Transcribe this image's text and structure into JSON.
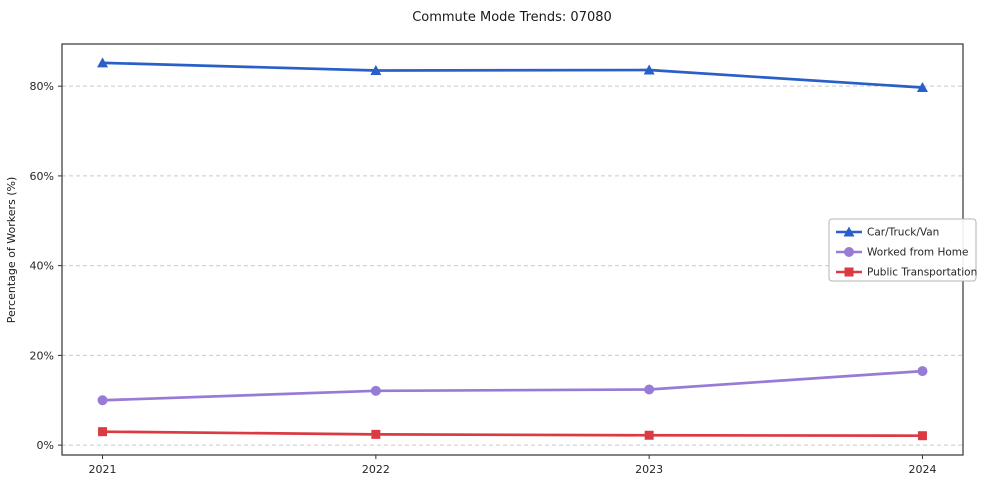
{
  "chart_data": {
    "type": "line",
    "title": "Commute Mode Trends: 07080",
    "xlabel": "",
    "ylabel": "Percentage of Workers (%)",
    "x": [
      2021,
      2022,
      2023,
      2024
    ],
    "x_tick_labels": [
      "2021",
      "2022",
      "2023",
      "2024"
    ],
    "y_ticks": [
      0,
      20,
      40,
      60,
      80
    ],
    "y_tick_labels": [
      "0%",
      "20%",
      "40%",
      "60%",
      "80%"
    ],
    "ylim": [
      -2.2,
      89.4
    ],
    "grid": "horizontal-dashed",
    "legend_position": "center-right",
    "series": [
      {
        "name": "Car/Truck/Van",
        "marker": "triangle",
        "color": "#2a5fc7",
        "values": [
          85.2,
          83.5,
          83.6,
          79.7
        ]
      },
      {
        "name": "Worked from Home",
        "marker": "circle",
        "color": "#977bd6",
        "values": [
          10.0,
          12.1,
          12.4,
          16.5
        ]
      },
      {
        "name": "Public Transportation",
        "marker": "square",
        "color": "#da3b43",
        "values": [
          3.0,
          2.4,
          2.2,
          2.1
        ]
      }
    ],
    "colors": {
      "grid": "#c9c9c9",
      "spine": "#333333",
      "background": "#ffffff",
      "legend_border": "#b5b5b5"
    }
  }
}
